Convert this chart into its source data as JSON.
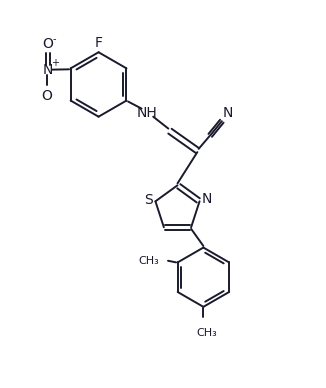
{
  "bg_color": "#ffffff",
  "line_color": "#1a1a2e",
  "line_width": 1.4,
  "figsize": [
    3.26,
    3.88
  ],
  "dpi": 100,
  "font_size": 9,
  "xlim": [
    0,
    10
  ],
  "ylim": [
    0,
    12
  ]
}
